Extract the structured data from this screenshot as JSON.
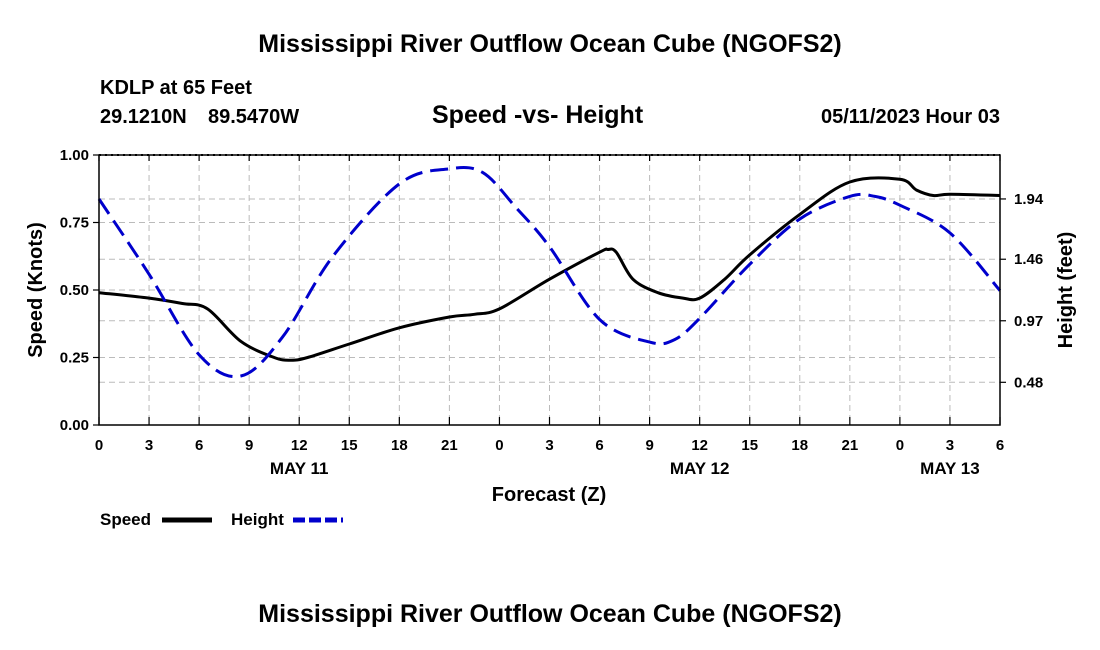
{
  "page": {
    "title": "Mississippi River Outflow Ocean Cube (NGOFS2)",
    "footer_title": "Mississippi River Outflow Ocean Cube (NGOFS2)",
    "station": "KDLP at 65 Feet",
    "lat": "29.1210N",
    "lon": "89.5470W",
    "datetime": "05/11/2023 Hour 03"
  },
  "chart_data": {
    "type": "line",
    "title": "Speed -vs- Height",
    "xlabel": "Forecast (Z)",
    "ylabel": "Speed (Knots)",
    "y2label": "Height (feet)",
    "xlim": [
      0,
      54
    ],
    "ylim": [
      0,
      1.0
    ],
    "y2lim": [
      0.14,
      2.29
    ],
    "x_ticks": [
      0,
      3,
      6,
      9,
      12,
      15,
      18,
      21,
      24,
      27,
      30,
      33,
      36,
      39,
      42,
      45,
      48,
      51,
      54
    ],
    "x_tick_labels": [
      "0",
      "3",
      "6",
      "9",
      "12",
      "15",
      "18",
      "21",
      "0",
      "3",
      "6",
      "9",
      "12",
      "15",
      "18",
      "21",
      "0",
      "3",
      "6"
    ],
    "date_labels": [
      {
        "x": 12,
        "label": "MAY 11"
      },
      {
        "x": 36,
        "label": "MAY 12"
      },
      {
        "x": 51,
        "label": "MAY 13"
      }
    ],
    "y_ticks": [
      0.0,
      0.25,
      0.5,
      0.75,
      1.0
    ],
    "y_tick_labels": [
      "0.00",
      "0.25",
      "0.50",
      "0.75",
      "1.00"
    ],
    "y2_ticks": [
      0.48,
      0.97,
      1.46,
      1.94
    ],
    "y2_tick_labels": [
      "0.48",
      "0.97",
      "1.46",
      "1.94"
    ],
    "grid": true,
    "legend_position": "bottom-left",
    "series": [
      {
        "name": "Speed",
        "axis": "left",
        "color": "#000000",
        "style": "solid",
        "x": [
          0,
          3,
          5,
          6.5,
          8.5,
          10.5,
          11.5,
          12.5,
          15,
          18,
          21,
          22.5,
          24,
          27,
          30,
          30.5,
          31,
          32,
          33.5,
          35,
          36,
          37.5,
          39,
          42,
          45,
          48,
          49,
          50,
          51,
          54
        ],
        "values": [
          0.49,
          0.47,
          0.45,
          0.43,
          0.31,
          0.25,
          0.24,
          0.25,
          0.3,
          0.36,
          0.4,
          0.41,
          0.43,
          0.54,
          0.64,
          0.65,
          0.64,
          0.54,
          0.49,
          0.47,
          0.47,
          0.54,
          0.63,
          0.78,
          0.9,
          0.91,
          0.87,
          0.85,
          0.855,
          0.85
        ]
      },
      {
        "name": "Height",
        "axis": "right",
        "color": "#0000cc",
        "style": "dashed",
        "x": [
          0,
          3,
          6,
          8.5,
          11,
          14,
          18,
          21,
          23,
          25,
          27,
          30,
          33,
          34.5,
          36,
          39,
          42,
          45,
          46.5,
          48,
          51,
          54
        ],
        "values": [
          1.94,
          1.34,
          0.7,
          0.53,
          0.84,
          1.48,
          2.06,
          2.18,
          2.15,
          1.87,
          1.56,
          0.98,
          0.8,
          0.82,
          0.99,
          1.42,
          1.78,
          1.96,
          1.96,
          1.89,
          1.67,
          1.21
        ]
      }
    ]
  }
}
